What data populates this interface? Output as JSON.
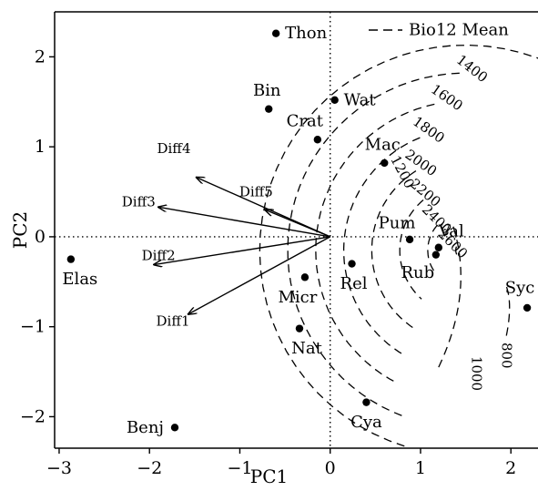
{
  "chart_data": {
    "type": "scatter",
    "xlabel": "PC1",
    "ylabel": "PC2",
    "xlim": [
      -3.05,
      2.3
    ],
    "ylim": [
      -2.35,
      2.5
    ],
    "xticks": [
      -3,
      -2,
      -1,
      0,
      1,
      2
    ],
    "yticks": [
      -2,
      -1,
      0,
      1,
      2
    ],
    "xtick_labels": [
      "−3",
      "−2",
      "−1",
      "0",
      "1",
      "2"
    ],
    "ytick_labels": [
      "−2",
      "−1",
      "0",
      "1",
      "2"
    ],
    "reference_lines": {
      "x": 0,
      "y": 0,
      "style": "dotted"
    },
    "legend": {
      "label": "Bio12 Mean",
      "position": "top-right",
      "style": "dashed"
    },
    "points": [
      {
        "label": "Thon",
        "x": -0.6,
        "y": 2.26
      },
      {
        "label": "Wat",
        "x": 0.05,
        "y": 1.52
      },
      {
        "label": "Bin",
        "x": -0.68,
        "y": 1.42
      },
      {
        "label": "Crat",
        "x": -0.14,
        "y": 1.08
      },
      {
        "label": "Mac",
        "x": 0.6,
        "y": 0.82
      },
      {
        "label": "Pum",
        "x": 0.88,
        "y": -0.03
      },
      {
        "label": "Val",
        "x": 1.2,
        "y": -0.12
      },
      {
        "label": "Rub",
        "x": 1.17,
        "y": -0.2
      },
      {
        "label": "Rel",
        "x": 0.24,
        "y": -0.3
      },
      {
        "label": "Micr",
        "x": -0.28,
        "y": -0.45
      },
      {
        "label": "Nat",
        "x": -0.34,
        "y": -1.02
      },
      {
        "label": "Elas",
        "x": -2.87,
        "y": -0.25
      },
      {
        "label": "Syc",
        "x": 2.18,
        "y": -0.79
      },
      {
        "label": "Cya",
        "x": 0.4,
        "y": -1.84
      },
      {
        "label": "Benj",
        "x": -1.72,
        "y": -2.12
      }
    ],
    "arrows": [
      {
        "label": "Diff4",
        "x": -1.48,
        "y": 0.66
      },
      {
        "label": "Diff5",
        "x": -0.72,
        "y": 0.3
      },
      {
        "label": "Diff3",
        "x": -1.9,
        "y": 0.33
      },
      {
        "label": "Diff2",
        "x": -1.95,
        "y": -0.31
      },
      {
        "label": "Diff1",
        "x": -1.57,
        "y": -0.86
      }
    ],
    "contours": [
      {
        "level": "2600",
        "r": 2.47
      },
      {
        "level": "2400",
        "r": 2.16
      },
      {
        "level": "2200",
        "r": 1.85
      },
      {
        "level": "2000",
        "r": 1.54
      },
      {
        "level": "1800",
        "r": 1.23
      },
      {
        "level": "1600",
        "r": 0.92
      },
      {
        "level": "1400",
        "r": 0.61
      },
      {
        "level": "1200",
        "r": 0.3
      },
      {
        "level": "1000",
        "r": -0.01
      },
      {
        "level": "800",
        "r": -0.6
      }
    ]
  }
}
